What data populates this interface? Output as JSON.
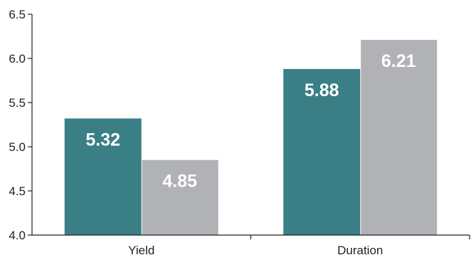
{
  "chart_data": {
    "type": "bar",
    "categories": [
      "Yield",
      "Duration"
    ],
    "series": [
      {
        "values": [
          5.32,
          5.88
        ],
        "color": "#3a7f86"
      },
      {
        "values": [
          4.85,
          6.21
        ],
        "color": "#b1b2b5"
      }
    ],
    "ylim": [
      4.0,
      6.5
    ],
    "yticks": [
      "4.0",
      "4.5",
      "5.0",
      "5.5",
      "6.0",
      "6.5"
    ],
    "data_labels": [
      [
        "5.32",
        "5.88"
      ],
      [
        "4.85",
        "6.21"
      ]
    ],
    "grid": false,
    "legend": "none"
  }
}
